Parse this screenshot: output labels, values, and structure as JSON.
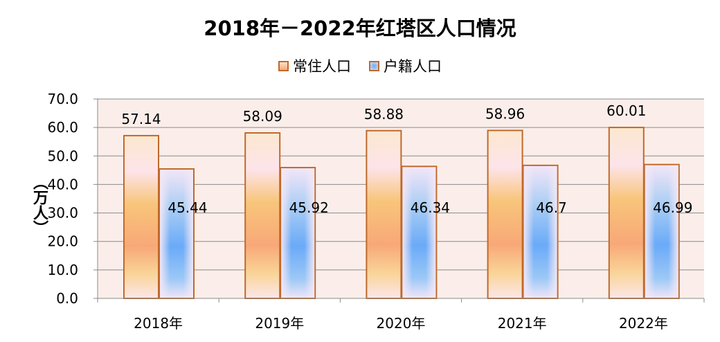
{
  "chart_data": {
    "type": "bar",
    "title": "2018年－2022年红塔区人口情况",
    "ylabel": "（万人）",
    "xlabel": "",
    "categories": [
      "2018年",
      "2019年",
      "2020年",
      "2021年",
      "2022年"
    ],
    "series": [
      {
        "name": "常住人口",
        "values": [
          57.14,
          58.09,
          58.88,
          58.96,
          60.01
        ],
        "labels": [
          "57.14",
          "58.09",
          "58.88",
          "58.96",
          "60.01"
        ],
        "color": "#f8a878"
      },
      {
        "name": "户籍人口",
        "values": [
          45.44,
          45.92,
          46.34,
          46.7,
          46.99
        ],
        "labels": [
          "45.44",
          "45.92",
          "46.34",
          "46.7",
          "46.99"
        ],
        "color": "#6aaaf8"
      }
    ],
    "ylim": [
      0,
      70
    ],
    "yticks": [
      "0.0",
      "10.0",
      "20.0",
      "30.0",
      "40.0",
      "50.0",
      "60.0",
      "70.0"
    ],
    "grid": true,
    "legend_position": "top",
    "plot_background": "#fbeeea",
    "bar_border": "#c0692a"
  }
}
